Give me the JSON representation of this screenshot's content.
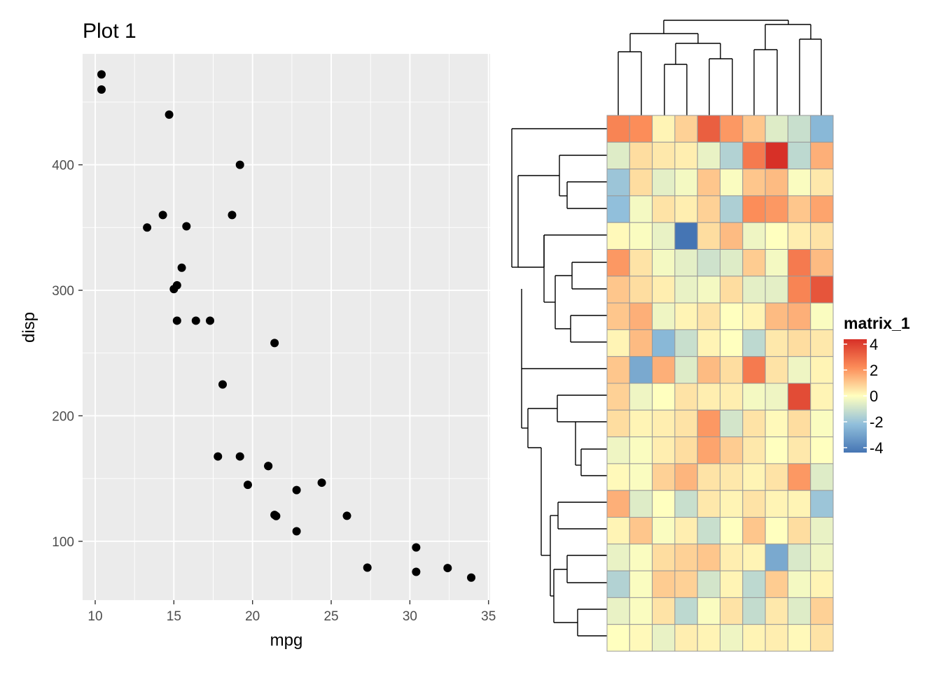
{
  "chart_data": [
    {
      "type": "scatter",
      "title": "Plot 1",
      "xlabel": "mpg",
      "ylabel": "disp",
      "xlim": [
        9.2,
        35.1
      ],
      "ylim": [
        53.1,
        488.4
      ],
      "x_ticks": [
        10,
        15,
        20,
        25,
        30,
        35
      ],
      "y_ticks": [
        100,
        200,
        300,
        400
      ],
      "grid": true,
      "panel_background": "#ebebeb",
      "point_color": "#000000",
      "points": [
        {
          "x": 10.4,
          "y": 472
        },
        {
          "x": 10.4,
          "y": 460
        },
        {
          "x": 14.7,
          "y": 440
        },
        {
          "x": 19.2,
          "y": 400
        },
        {
          "x": 14.3,
          "y": 360
        },
        {
          "x": 18.7,
          "y": 360
        },
        {
          "x": 13.3,
          "y": 350
        },
        {
          "x": 15.8,
          "y": 351
        },
        {
          "x": 15.5,
          "y": 318
        },
        {
          "x": 15.2,
          "y": 304
        },
        {
          "x": 15.0,
          "y": 301
        },
        {
          "x": 15.2,
          "y": 275.8
        },
        {
          "x": 16.4,
          "y": 275.8
        },
        {
          "x": 17.3,
          "y": 275.8
        },
        {
          "x": 21.4,
          "y": 258
        },
        {
          "x": 18.1,
          "y": 225
        },
        {
          "x": 17.8,
          "y": 167.6
        },
        {
          "x": 19.2,
          "y": 167.6
        },
        {
          "x": 21.0,
          "y": 160
        },
        {
          "x": 21.0,
          "y": 160
        },
        {
          "x": 19.7,
          "y": 145
        },
        {
          "x": 24.4,
          "y": 146.7
        },
        {
          "x": 22.8,
          "y": 140.8
        },
        {
          "x": 21.4,
          "y": 121
        },
        {
          "x": 21.5,
          "y": 120.1
        },
        {
          "x": 26.0,
          "y": 120.3
        },
        {
          "x": 22.8,
          "y": 108
        },
        {
          "x": 30.4,
          "y": 95.1
        },
        {
          "x": 27.3,
          "y": 79
        },
        {
          "x": 32.4,
          "y": 78.7
        },
        {
          "x": 30.4,
          "y": 75.7
        },
        {
          "x": 33.9,
          "y": 71.1
        }
      ]
    },
    {
      "type": "heatmap",
      "legend_title": "matrix_1",
      "legend_ticks": [
        4,
        2,
        0,
        -2,
        -4
      ],
      "color_scale": [
        {
          "value": -4,
          "color": "#4575b4"
        },
        {
          "value": -2,
          "color": "#91bfdb"
        },
        {
          "value": 0,
          "color": "#ffffbf"
        },
        {
          "value": 2,
          "color": "#fc8d59"
        },
        {
          "value": 4,
          "color": "#d73027"
        }
      ],
      "values": [
        [
          2.2,
          2.0,
          0.2,
          0.8,
          3.0,
          1.8,
          1.0,
          -0.6,
          -1.0,
          -2.2
        ],
        [
          -0.6,
          0.6,
          0.4,
          0.3,
          -0.4,
          -1.4,
          2.4,
          4.2,
          -1.2,
          1.4
        ],
        [
          -1.8,
          0.6,
          -0.5,
          -0.2,
          1.0,
          -0.1,
          1.0,
          1.2,
          -0.1,
          0.4
        ],
        [
          -2.0,
          -0.2,
          0.5,
          0.3,
          0.8,
          -1.5,
          2.0,
          1.8,
          1.0,
          1.6
        ],
        [
          0.1,
          -0.1,
          -0.4,
          -4.2,
          0.6,
          1.2,
          -0.3,
          0.0,
          0.3,
          0.5
        ],
        [
          1.8,
          0.5,
          -0.2,
          -0.5,
          -0.9,
          -0.6,
          0.9,
          -0.2,
          2.4,
          1.2
        ],
        [
          1.0,
          0.6,
          0.3,
          -0.4,
          -0.2,
          0.6,
          -0.5,
          -0.5,
          2.2,
          3.2
        ],
        [
          1.0,
          1.4,
          -0.3,
          0.2,
          0.5,
          0.0,
          0.2,
          1.2,
          1.4,
          -0.1
        ],
        [
          0.2,
          1.2,
          -2.2,
          -1.0,
          0.2,
          0.0,
          -1.2,
          0.4,
          0.6,
          0.4
        ],
        [
          1.0,
          -2.6,
          1.4,
          -0.6,
          1.2,
          0.6,
          2.4,
          0.5,
          -0.3,
          0.2
        ],
        [
          0.8,
          -0.3,
          0.0,
          0.5,
          0.3,
          0.3,
          -0.2,
          -0.3,
          3.4,
          0.2
        ],
        [
          0.6,
          0.2,
          0.3,
          0.5,
          1.8,
          -0.8,
          0.5,
          0.1,
          0.6,
          -0.1
        ],
        [
          -0.3,
          -0.1,
          0.3,
          0.6,
          1.6,
          0.9,
          0.4,
          0.0,
          0.4,
          0.0
        ],
        [
          0.1,
          -0.1,
          0.8,
          1.3,
          0.5,
          0.4,
          0.2,
          0.5,
          1.8,
          -0.6
        ],
        [
          1.4,
          -0.6,
          0.0,
          -1.0,
          0.4,
          0.2,
          0.5,
          0.2,
          0.2,
          -1.8
        ],
        [
          0.2,
          1.0,
          -0.1,
          0.3,
          -1.0,
          0.0,
          1.0,
          0.0,
          0.6,
          -0.4
        ],
        [
          -0.4,
          -0.1,
          0.6,
          0.8,
          1.0,
          0.3,
          0.2,
          -2.6,
          -0.7,
          -0.3
        ],
        [
          -1.4,
          -0.1,
          0.9,
          0.8,
          -0.8,
          0.2,
          -1.2,
          0.9,
          -0.2,
          0.2
        ],
        [
          -0.4,
          -0.1,
          0.5,
          -1.2,
          -0.1,
          0.5,
          -1.1,
          0.4,
          -0.6,
          0.8
        ],
        [
          0.0,
          0.1,
          -0.4,
          0.3,
          0.2,
          -0.3,
          0.2,
          0.3,
          0.1,
          0.5
        ]
      ]
    }
  ]
}
